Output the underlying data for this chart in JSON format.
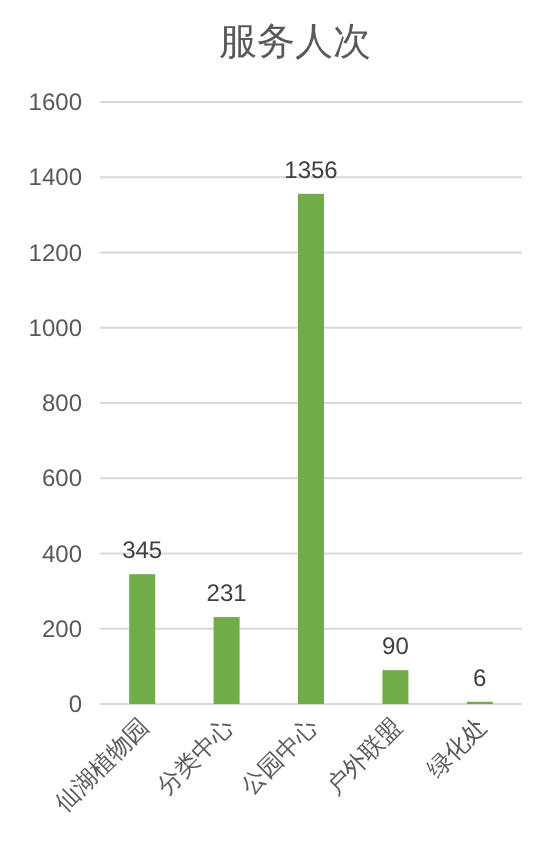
{
  "chart_data": {
    "type": "bar",
    "title": "服务人次",
    "categories": [
      "仙湖植物园",
      "分类中心",
      "公园中心",
      "户外联盟",
      "绿化处"
    ],
    "values": [
      345,
      231,
      1356,
      90,
      6
    ],
    "color": "#70ad47",
    "ylim": [
      0,
      1600
    ],
    "yticks": [
      0,
      200,
      400,
      600,
      800,
      1000,
      1200,
      1400,
      1600
    ],
    "grid": "y",
    "data_labels": true
  }
}
